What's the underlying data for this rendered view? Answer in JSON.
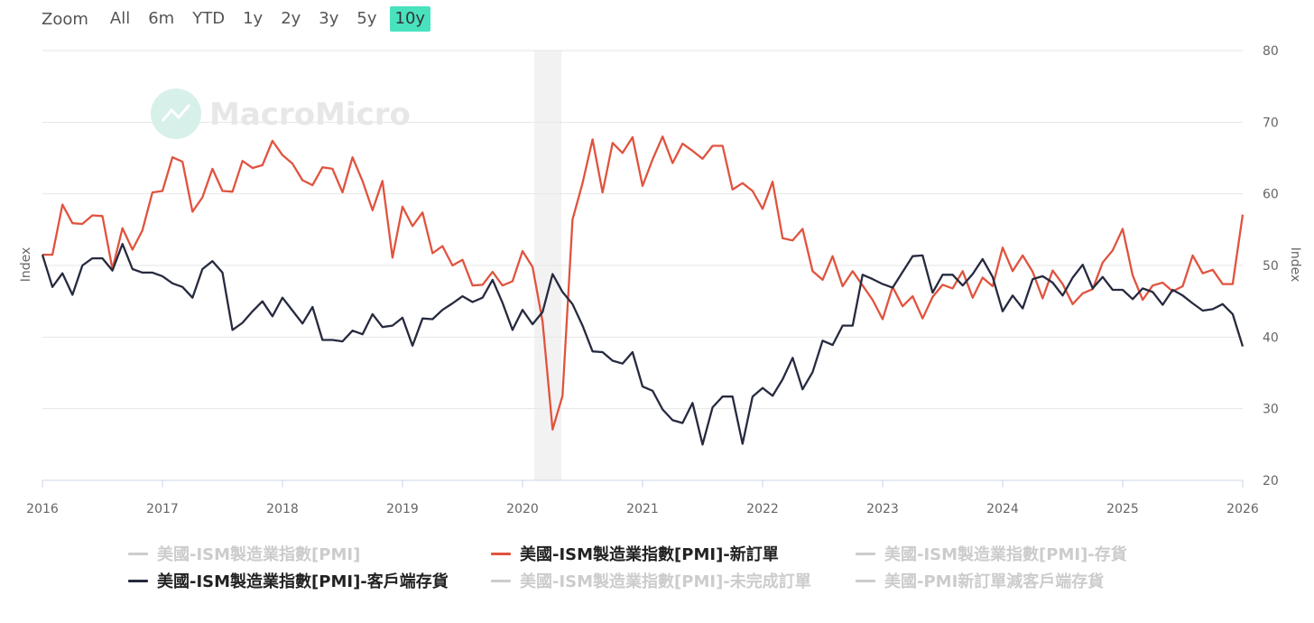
{
  "zoom": {
    "label": "Zoom",
    "buttons": [
      "All",
      "6m",
      "YTD",
      "1y",
      "2y",
      "3y",
      "5y",
      "10y"
    ],
    "active": "10y"
  },
  "watermark": "MacroMicro",
  "colors": {
    "new_orders": "#e0533e",
    "customer_inventories": "#262a3f",
    "grid": "#e6e6e6",
    "recession": "#f2f2f2",
    "hidden_legend": "#cccccc",
    "watermark": "#d8f0ea"
  },
  "legend": [
    {
      "label": "美國-ISM製造業指數[PMI]",
      "visible": false
    },
    {
      "label": "美國-ISM製造業指數[PMI]-新訂單",
      "visible": true,
      "color": "#e0533e"
    },
    {
      "label": "美國-ISM製造業指數[PMI]-存貨",
      "visible": false
    },
    {
      "label": "美國-ISM製造業指數[PMI]-客戶端存貨",
      "visible": true,
      "color": "#262a3f"
    },
    {
      "label": "美國-ISM製造業指數[PMI]-未完成訂單",
      "visible": false
    },
    {
      "label": "美國-PMI新訂單減客戶端存貨",
      "visible": false
    }
  ],
  "chart_data": {
    "type": "line",
    "x_range": [
      "2016-01",
      "2026-01"
    ],
    "x_ticks": [
      "2016",
      "2017",
      "2018",
      "2019",
      "2020",
      "2021",
      "2022",
      "2023",
      "2024",
      "2025",
      "2026"
    ],
    "ylabel_left": "Index",
    "ylabel_right": "Index",
    "ylim": [
      20,
      80
    ],
    "y_ticks": [
      20,
      30,
      40,
      50,
      60,
      70,
      80
    ],
    "grid": true,
    "recession_band": [
      "2020-02",
      "2020-04"
    ],
    "series": [
      {
        "name": "美國-ISM製造業指數[PMI]-新訂單",
        "color": "#e0533e",
        "start": "2016-01",
        "frequency": "monthly",
        "values": [
          51.5,
          51.5,
          58.5,
          55.9,
          55.8,
          57.0,
          56.9,
          49.5,
          55.2,
          52.2,
          54.9,
          60.2,
          60.4,
          65.1,
          64.5,
          57.5,
          59.5,
          63.5,
          60.4,
          60.3,
          64.6,
          63.6,
          64.0,
          67.4,
          65.4,
          64.2,
          61.9,
          61.2,
          63.7,
          63.5,
          60.2,
          65.1,
          61.8,
          57.7,
          61.8,
          51.1,
          58.2,
          55.5,
          57.4,
          51.7,
          52.7,
          50.0,
          50.8,
          47.2,
          47.3,
          49.1,
          47.2,
          47.8,
          52.0,
          49.8,
          42.2,
          27.1,
          31.8,
          56.4,
          61.5,
          67.6,
          60.2,
          67.1,
          65.7,
          67.9,
          61.1,
          64.8,
          68.0,
          64.3,
          67.0,
          66.0,
          64.9,
          66.7,
          66.7,
          60.6,
          61.5,
          60.4,
          57.9,
          61.7,
          53.8,
          53.5,
          55.1,
          49.2,
          48.0,
          51.3,
          47.1,
          49.2,
          47.2,
          45.2,
          42.5,
          47.0,
          44.3,
          45.7,
          42.6,
          45.6,
          47.3,
          46.8,
          49.2,
          45.5,
          48.3,
          47.1,
          52.5,
          49.2,
          51.4,
          49.1,
          45.4,
          49.3,
          47.4,
          44.6,
          46.1,
          46.7,
          50.4,
          52.1,
          55.1,
          48.6,
          45.2,
          47.2,
          47.6,
          46.4,
          47.1,
          51.4,
          48.9,
          49.4,
          47.4,
          47.4,
          57.1
        ]
      },
      {
        "name": "美國-ISM製造業指數[PMI]-客戶端存貨",
        "color": "#262a3f",
        "start": "2016-01",
        "frequency": "monthly",
        "values": [
          51.5,
          47.0,
          48.9,
          45.9,
          50.0,
          51.0,
          51.0,
          49.3,
          53.0,
          49.5,
          49.0,
          49.0,
          48.5,
          47.5,
          47.0,
          45.5,
          49.5,
          50.6,
          49.0,
          41.0,
          42.0,
          43.6,
          45.0,
          42.9,
          45.5,
          43.7,
          41.9,
          44.2,
          39.6,
          39.6,
          39.4,
          40.9,
          40.4,
          43.2,
          41.4,
          41.6,
          42.7,
          38.8,
          42.6,
          42.5,
          43.8,
          44.7,
          45.7,
          44.9,
          45.5,
          48.0,
          44.8,
          41.0,
          43.8,
          41.8,
          43.5,
          48.8,
          46.3,
          44.6,
          41.6,
          38.0,
          37.9,
          36.7,
          36.3,
          37.9,
          33.1,
          32.5,
          29.9,
          28.4,
          28.0,
          30.8,
          25.0,
          30.2,
          31.7,
          31.7,
          25.1,
          31.7,
          32.9,
          31.8,
          34.1,
          37.1,
          32.7,
          35.1,
          39.5,
          38.9,
          41.6,
          41.6,
          48.7,
          48.1,
          47.4,
          46.9,
          49.1,
          51.3,
          51.4,
          46.2,
          48.7,
          48.7,
          47.2,
          48.8,
          50.9,
          48.4,
          43.6,
          45.8,
          44.0,
          48.1,
          48.5,
          47.6,
          45.8,
          48.3,
          50.1,
          46.8,
          48.4,
          46.6,
          46.6,
          45.3,
          46.8,
          46.3,
          44.5,
          46.6,
          45.8,
          44.7,
          43.7,
          43.9,
          44.6,
          43.2,
          38.7
        ]
      }
    ]
  }
}
